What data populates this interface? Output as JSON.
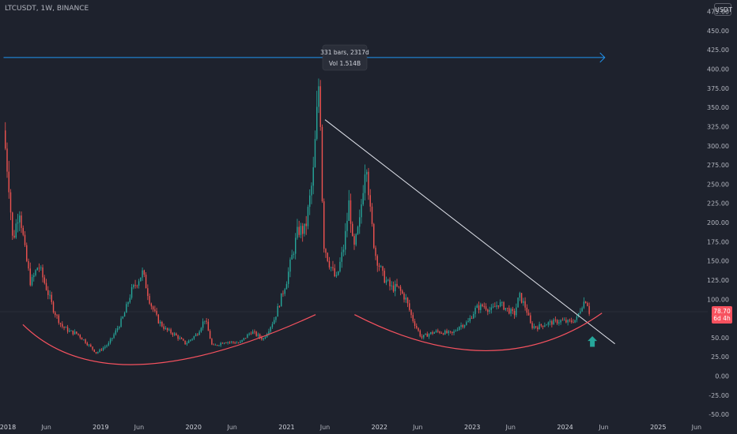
{
  "header": {
    "symbol": "LTCUSDT, 1W, BINANCE",
    "currency": "USDT"
  },
  "measure": {
    "line1": "331 bars, 2317d",
    "line2": "Vol 1.514B"
  },
  "price_label": {
    "value": "78.70",
    "countdown": "6d 4h"
  },
  "colors": {
    "background": "#1e222d",
    "up": "#26a69a",
    "down": "#ef5350",
    "arrow": "#2196f3",
    "curve": "#f7525f",
    "trendline": "#e0e3eb",
    "signal": "#26a69a"
  },
  "chart_data": {
    "type": "candlestick",
    "ylim": [
      -55,
      490
    ],
    "xlim": [
      "2017-12-01",
      "2025-07-15"
    ],
    "y_ticks": [
      "475.00",
      "450.00",
      "425.00",
      "400.00",
      "375.00",
      "350.00",
      "325.00",
      "300.00",
      "275.00",
      "250.00",
      "225.00",
      "200.00",
      "175.00",
      "150.00",
      "125.00",
      "100.00",
      "75.00",
      "50.00",
      "25.00",
      "0.00",
      "-25.00",
      "-50.00"
    ],
    "x_ticks": [
      {
        "label": "2018",
        "date": "2018-01-01",
        "year": true
      },
      {
        "label": "Jun",
        "date": "2018-06-01"
      },
      {
        "label": "2019",
        "date": "2019-01-01",
        "year": true
      },
      {
        "label": "Jun",
        "date": "2019-06-01"
      },
      {
        "label": "2020",
        "date": "2020-01-01",
        "year": true
      },
      {
        "label": "Jun",
        "date": "2020-06-01"
      },
      {
        "label": "2021",
        "date": "2021-01-01",
        "year": true
      },
      {
        "label": "Jun",
        "date": "2021-06-01"
      },
      {
        "label": "2022",
        "date": "2022-01-01",
        "year": true
      },
      {
        "label": "Jun",
        "date": "2022-06-01"
      },
      {
        "label": "2023",
        "date": "2023-01-01",
        "year": true
      },
      {
        "label": "Jun",
        "date": "2023-06-01"
      },
      {
        "label": "2024",
        "date": "2024-01-01",
        "year": true
      },
      {
        "label": "Jun",
        "date": "2024-06-01"
      },
      {
        "label": "2025",
        "date": "2025-01-01",
        "year": true
      },
      {
        "label": "Jun",
        "date": "2025-06-01"
      }
    ],
    "price_path": [
      [
        "2017-12-15",
        320
      ],
      [
        "2018-01-05",
        250
      ],
      [
        "2018-01-20",
        175
      ],
      [
        "2018-02-15",
        220
      ],
      [
        "2018-03-10",
        160
      ],
      [
        "2018-04-01",
        120
      ],
      [
        "2018-05-01",
        145
      ],
      [
        "2018-06-01",
        115
      ],
      [
        "2018-07-01",
        85
      ],
      [
        "2018-08-01",
        65
      ],
      [
        "2018-09-01",
        58
      ],
      [
        "2018-10-01",
        55
      ],
      [
        "2018-11-01",
        45
      ],
      [
        "2018-12-15",
        30
      ],
      [
        "2019-02-01",
        42
      ],
      [
        "2019-03-01",
        58
      ],
      [
        "2019-04-01",
        78
      ],
      [
        "2019-05-01",
        110
      ],
      [
        "2019-06-15",
        135
      ],
      [
        "2019-07-15",
        95
      ],
      [
        "2019-08-15",
        72
      ],
      [
        "2019-09-15",
        60
      ],
      [
        "2019-10-15",
        55
      ],
      [
        "2019-12-01",
        42
      ],
      [
        "2020-01-15",
        55
      ],
      [
        "2020-02-15",
        75
      ],
      [
        "2020-03-15",
        38
      ],
      [
        "2020-05-01",
        45
      ],
      [
        "2020-07-01",
        43
      ],
      [
        "2020-08-15",
        58
      ],
      [
        "2020-10-01",
        48
      ],
      [
        "2020-11-15",
        75
      ],
      [
        "2021-01-01",
        125
      ],
      [
        "2021-02-15",
        190
      ],
      [
        "2021-03-15",
        190
      ],
      [
        "2021-04-15",
        260
      ],
      [
        "2021-05-10",
        395
      ],
      [
        "2021-05-25",
        175
      ],
      [
        "2021-06-15",
        150
      ],
      [
        "2021-07-15",
        125
      ],
      [
        "2021-08-15",
        170
      ],
      [
        "2021-09-05",
        230
      ],
      [
        "2021-09-20",
        160
      ],
      [
        "2021-10-15",
        200
      ],
      [
        "2021-11-10",
        290
      ],
      [
        "2021-11-25",
        215
      ],
      [
        "2021-12-15",
        160
      ],
      [
        "2022-01-15",
        130
      ],
      [
        "2022-02-15",
        115
      ],
      [
        "2022-03-15",
        115
      ],
      [
        "2022-04-15",
        100
      ],
      [
        "2022-05-10",
        75
      ],
      [
        "2022-06-15",
        50
      ],
      [
        "2022-07-15",
        55
      ],
      [
        "2022-08-15",
        58
      ],
      [
        "2022-10-15",
        55
      ],
      [
        "2022-11-10",
        65
      ],
      [
        "2022-12-15",
        70
      ],
      [
        "2023-01-15",
        88
      ],
      [
        "2023-02-15",
        92
      ],
      [
        "2023-03-15",
        85
      ],
      [
        "2023-04-15",
        95
      ],
      [
        "2023-05-15",
        88
      ],
      [
        "2023-06-15",
        80
      ],
      [
        "2023-07-05",
        105
      ],
      [
        "2023-08-01",
        88
      ],
      [
        "2023-08-20",
        65
      ],
      [
        "2023-09-15",
        64
      ],
      [
        "2023-10-15",
        68
      ],
      [
        "2023-11-15",
        70
      ],
      [
        "2023-12-15",
        72
      ],
      [
        "2024-01-15",
        70
      ],
      [
        "2024-02-15",
        74
      ],
      [
        "2024-03-10",
        95
      ],
      [
        "2024-03-25",
        100
      ],
      [
        "2024-04-08",
        79
      ]
    ],
    "annotations": [
      {
        "type": "measure-arrow",
        "y": 415,
        "from": "2017-12-15",
        "to": "2024-06-05"
      },
      {
        "type": "trendline",
        "points": [
          [
            "2021-06-01",
            334
          ],
          [
            "2024-07-15",
            42
          ]
        ]
      },
      {
        "type": "arc",
        "points": [
          [
            "2018-03-01",
            67
          ],
          [
            "2019-06-01",
            15
          ],
          [
            "2021-04-25",
            80
          ]
        ]
      },
      {
        "type": "arc",
        "points": [
          [
            "2021-09-25",
            80
          ],
          [
            "2023-03-01",
            33
          ],
          [
            "2024-05-25",
            82
          ]
        ]
      },
      {
        "type": "signal-arrow",
        "date": "2024-04-08",
        "y_tip": 52,
        "y_base": 38
      }
    ]
  }
}
